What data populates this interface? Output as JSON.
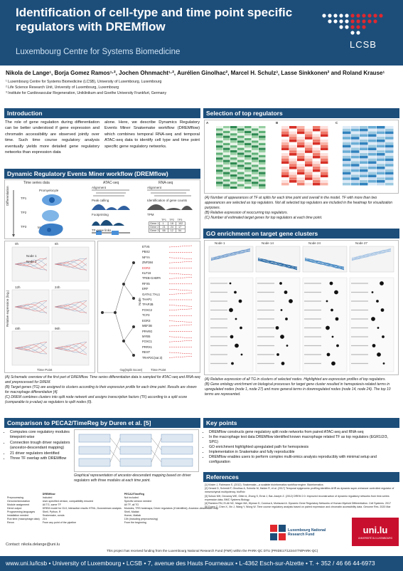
{
  "header": {
    "title": "Identification of cell-type and time point specific regulators with DREMflow",
    "subtitle": "Luxembourg Centre for Systems Biomedicine",
    "logo_text": "LCSB"
  },
  "authors": "Nikola de Lange¹, Borja Gomez Ramos¹·², Jochen Ohnmacht¹·², Aurélien Ginolhac², Marcel H. Schulz³, Lasse Sinkkonen² and Roland Krause¹",
  "affiliations": [
    "¹ Luxembourg Centre for Systems Biomedicine (LCSB), University of Luxembourg, Luxembourg",
    "² Life Science Research Unit, University of Luxembourg, Luxembourg",
    "³ Institute for Cardiovascular Regeneration, Uniklinikum and Goethe University Frankfurt, Germany"
  ],
  "intro": {
    "heading": "Introduction",
    "col1": "The role of gene regulation during differentiation can be better understood if gene expression and chromatin accessibility are observed jointly over time. Such time course regulatory analysis eventually yields more detailed gene regulatory networks than expression data",
    "col2": "alone. Here, we describe Dynamics Regulatory Events Miner Snakemake workflow (DREMflow) which combines temporal RNA-seq and temporal ATAC-seq data to identify cell type and time point specific gene regulatory networks."
  },
  "workflow": {
    "heading": "Dynamic Regulatory Events Miner workflow (DREMflow)",
    "labels": [
      "Time series data",
      "ATAC-seq",
      "RNA-seq",
      "Promyelocyte",
      "Macrophage",
      "Differentiation",
      "TP1",
      "TP2",
      "TP3",
      "Alignment",
      "Alignment",
      "Peak calling",
      "Identification of gene counts",
      "Footprinting",
      "TPM",
      "TF-gene links",
      "Gene 1",
      "Gene 2",
      "Gene 3",
      "TP1",
      "TP2",
      "TP3"
    ],
    "tpm_rows": [
      [
        "Gene 1",
        "1",
        "18",
        "102"
      ],
      [
        "Gene 2",
        "21",
        "24",
        "17"
      ],
      [
        "Gene 3",
        "66",
        "12",
        "54"
      ]
    ],
    "caption": [
      "(A) Schematic overview of the first part of DREMflow. Time series differentiation data is sampled for ATAC-seq and RNA-seq and preprocessed for DREM.",
      "(B) Target genes (TG) are assigned to clusters according to their expression profile for each time point. Results are shown for macrophage differentiation [4].",
      "(C) DREM combines clusters into split node network and assigns transcription factors (TF) according to a split score (comparable to p-value) as regulators to split nodes (0)."
    ],
    "b_panels": [
      "0h",
      "6h",
      "12h",
      "24h",
      "48h",
      "96h"
    ],
    "b_xlabel": "Time Point",
    "b_ylabel": "Relative expression (log₂)",
    "b_nodes": [
      "Node 1",
      "Node 2"
    ],
    "tf_list": [
      "ETV5",
      "PBX2",
      "NFYA",
      "ZNF384",
      "EGR2",
      "KLF16",
      "TFEB-GABPA",
      "RFX5",
      "ERF",
      "GATA1::TAL1",
      "THAP1",
      "TFAP2B",
      "FOXC2",
      "TCF3",
      "EGR3",
      "MEF2B",
      "PPARG",
      "MYB5",
      "FOXC1",
      "PRRX1",
      "REST",
      "TRAP2C(var.3)"
    ],
    "c_xlabel": "-log(Split Score)",
    "c_ylabel": "Node"
  },
  "selection": {
    "heading": "Selection of top regulators",
    "panel_labels": [
      "A",
      "B",
      "C"
    ],
    "caption": [
      "(A) Number of appearances of TF at splits for each time point and overall in the model. TF with more than two appearances are selected as top regulators. Not all selected top regulators are included in the heatmap for visualization purposes.",
      "(B) Relative expression of reoccurring top regulators.",
      "(C) Number of estimated target genes for top regulators at each time point."
    ]
  },
  "go": {
    "heading": "GO enrichment on target gene clusters",
    "node_labels": [
      "Node 1",
      "Node 14",
      "Node 24",
      "Node 27"
    ],
    "caption": [
      "(A) Relative expression of all TG in clusters of selected nodes. Highlighted are expression profiles of top regulators.",
      "(B) Gene ontology enrichment on biological processes for target gene cluster resulted in hemopoiesis-related terms in upregulated nodes (node 1, node 27) and more general terms in downregulated nodes (node 14, node 24). The top 10 terms are represented."
    ]
  },
  "comparison": {
    "heading": "Comparison to PECA2/TimeReg by Duren et al. [5]",
    "bullets": [
      "Computes core regulatory modules timepoint-wise",
      "Connection trough driver regulators (ancestor-descendant mapping)",
      "21 driver regulators identified",
      "Three TF overlap with DREMflow"
    ],
    "caption": "Graphical representation of ancestor-descendant mapping based on driver regulators with three modules at each time point.",
    "table_head": [
      "",
      "DREMflow",
      "PECA2/TimeReg"
    ],
    "table_rows": [
      [
        "Preprocessing",
        "Included",
        "Not included"
      ],
      [
        "Genome/Annotation",
        "User-specified version, compatibility ensured",
        "Specific version needed"
      ],
      [
        "Module assignment",
        "All TG, same TF",
        "All TF, all TG"
      ],
      [
        "Direct output",
        "DREM model for GUI; Interactive results HTML; Downstream analysis",
        "Modules, TRS heatmaps; Driver regulators (if identified); Ancestor-descendant map"
      ],
      [
        "Programming languages",
        "Shell, Python, R",
        "Shell, Matlab"
      ],
      [
        "Installation needed",
        "Snakemake, conda",
        "Homer, Matlab"
      ],
      [
        "Run time (macrophage data)",
        "21h",
        "15h (including preprocessing)"
      ],
      [
        "Rerun",
        "From any point of the pipeline",
        "From the beginning"
      ]
    ],
    "contact": "Contact: nikola.delange@uni.lu"
  },
  "keypoints": {
    "heading": "Key points",
    "items": [
      "DREMflow constructs gene regulatory split node networks from paired ATAC-seq and RNA-seq",
      "In the macrophage test data DREMflow identified known macrophage related TF as top regulators (EGR1/2/3, SPI1)",
      "GO enrichment highlighted upregulated path for hemopoiesis",
      "Implementation in Snakemake and fully reproducible",
      "DREMflow enables users to perform complex multi-omics analysis reproducibly with minimal setup and configuration"
    ]
  },
  "references": {
    "heading": "References",
    "items": [
      "[1] Köster J, Rahmann S. (2012). Snakemake—a scalable bioinformatics workflow engine. Bioinformatics",
      "[2] Gerard D, Schmidt F, Ginolhac A, Schmitz M, Halder R, et al. (2017) Temporal epigenomic profiling identifies AHR as dynamic super-enhancer controlled regulator of mesenchymal multipotency. bioRxiv",
      "[3] Schulz MH, Devanny WE, Gitter A, Zhong S, Ernst J, Bar-Joseph Z. (2012) DREM 2.0: Improved reconstruction of dynamic regulatory networks from time-series expression data, BMC Systems Biology",
      "[4] Ramirez RN, El-Ali NC, Mager MA, Wyman D, Conesa A, Mortazavi A. Dynamic Gene Regulatory Networks of Human Myeloid Differentiation. Cell Systems. 2017",
      "[5] Duren Z, Chen X, Xin J, Wang Y, Wong W. Time course regulatory analysis based on paired expression and chromatin accessibility data. Genome Res. 2020 Mar"
    ]
  },
  "logos": {
    "fnr": "Luxembourg National Research Fund",
    "uni": "uni.lu",
    "uni_sub": "UNIVERSITÉ DU LUXEMBOURG"
  },
  "funding": "This project has received funding from the Luxembourg National Research Fund (FNR) within the PARK-QC DTU (PRIDE17/12244779/PARK-QC)",
  "footer": "www.uni.lu/lcsb • University of Luxembourg • LCSB • 7, avenue des Hauts Fourneaux • L-4362 Esch-sur-Alzette • T. + 352 / 46 66 44-6973",
  "colors": {
    "primary": "#1d4e7a",
    "accent": "#e0282e"
  }
}
